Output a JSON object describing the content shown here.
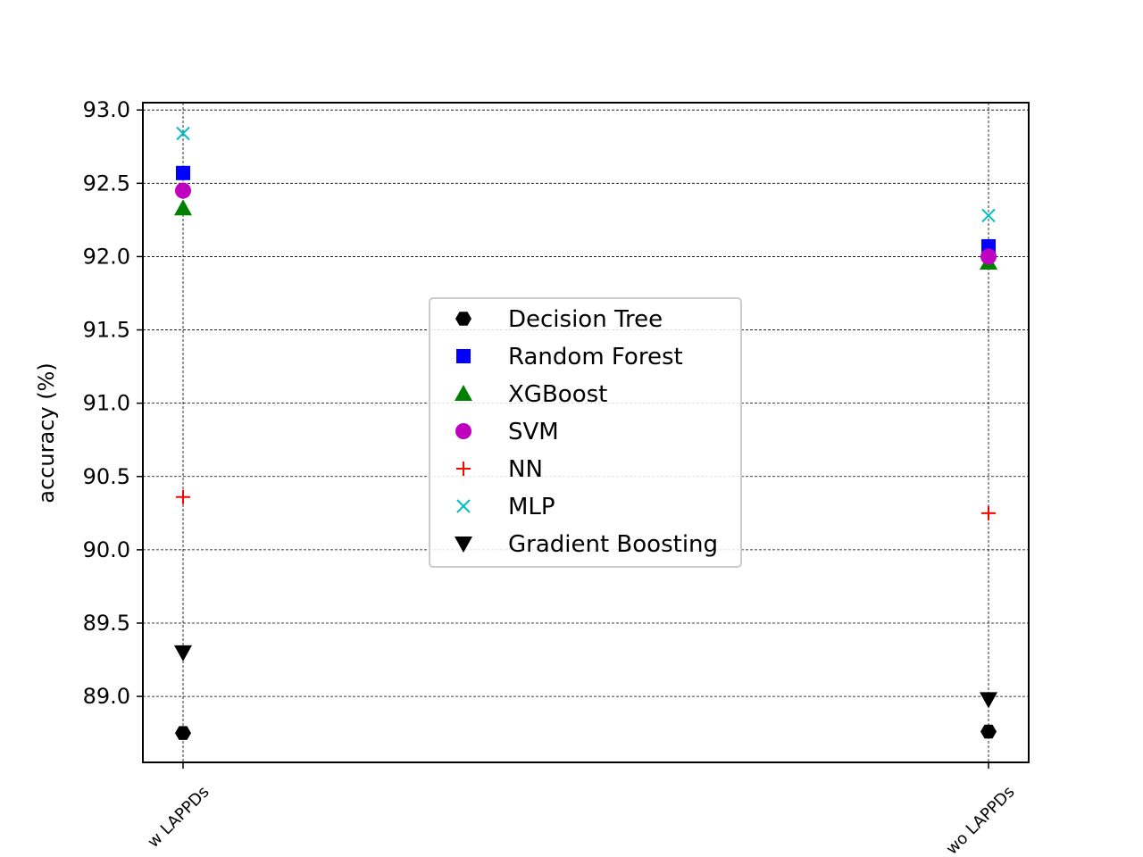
{
  "chart_data": {
    "type": "scatter",
    "title": "",
    "xlabel": "",
    "ylabel": "accuracy (%)",
    "categories": [
      "w LAPPDs",
      "wo LAPPDs"
    ],
    "ylim": [
      88.55,
      93.05
    ],
    "yticks": [
      "89.0",
      "89.5",
      "90.0",
      "90.5",
      "91.0",
      "91.5",
      "92.0",
      "92.5",
      "93.0"
    ],
    "grid": true,
    "legend_position": "center",
    "series": [
      {
        "name": "Decision Tree",
        "marker": "hexagon",
        "color": "#000000",
        "values": [
          88.75,
          88.76
        ]
      },
      {
        "name": "Random Forest",
        "marker": "square",
        "color": "#0000ff",
        "values": [
          92.57,
          92.07
        ]
      },
      {
        "name": "XGBoost",
        "marker": "triangle-up",
        "color": "#008000",
        "values": [
          92.33,
          91.96
        ]
      },
      {
        "name": "SVM",
        "marker": "circle",
        "color": "#bf00bf",
        "values": [
          92.45,
          92.0
        ]
      },
      {
        "name": "NN",
        "marker": "plus",
        "color": "#ff0000",
        "values": [
          90.36,
          90.25
        ]
      },
      {
        "name": "MLP",
        "marker": "x",
        "color": "#00bfbf",
        "values": [
          92.84,
          92.28
        ]
      },
      {
        "name": "Gradient Boosting",
        "marker": "triangle-down",
        "color": "#000000",
        "values": [
          89.3,
          88.98
        ]
      }
    ]
  }
}
